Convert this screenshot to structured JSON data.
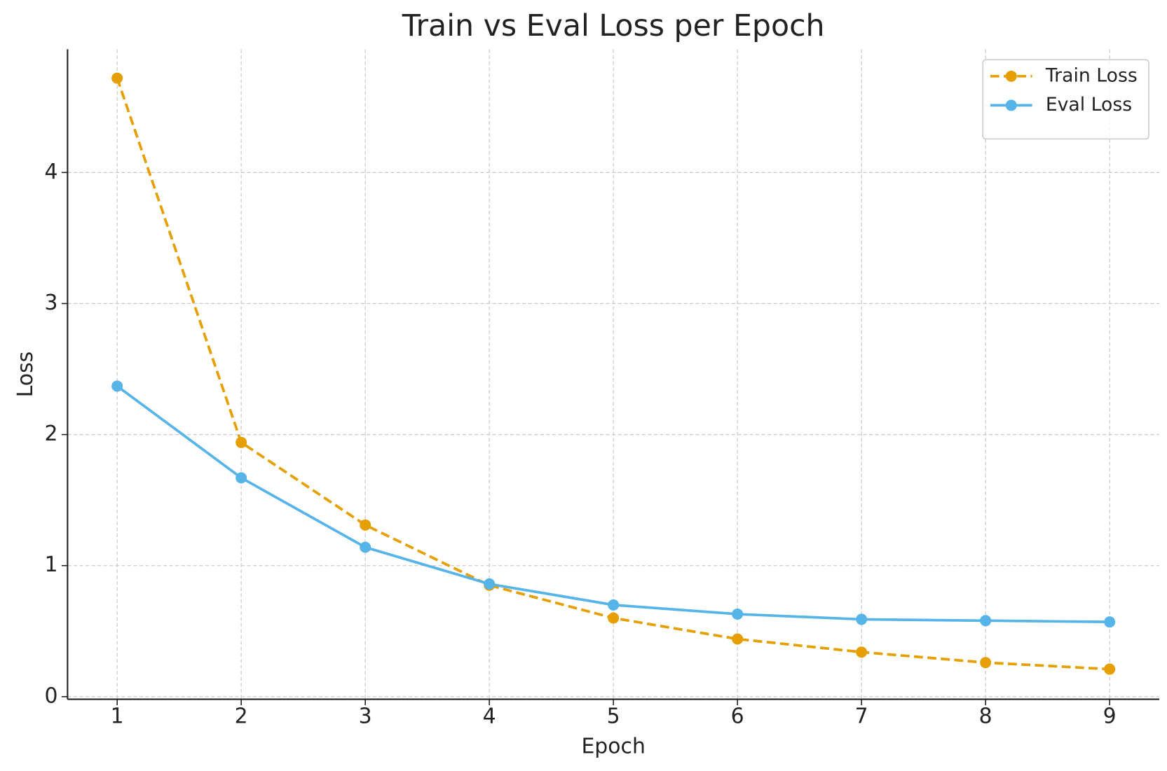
{
  "chart_data": {
    "type": "line",
    "title": "Train vs Eval Loss per Epoch",
    "x_label": "Epoch",
    "y_label": "Loss",
    "x": [
      1,
      2,
      3,
      4,
      5,
      6,
      7,
      8,
      9
    ],
    "series": [
      {
        "name": "Train Loss",
        "color": "#E69F00",
        "linestyle": "dashed",
        "values": [
          4.72,
          1.94,
          1.31,
          0.85,
          0.6,
          0.44,
          0.34,
          0.26,
          0.21
        ]
      },
      {
        "name": "Eval Loss",
        "color": "#56B4E9",
        "linestyle": "solid",
        "values": [
          2.37,
          1.67,
          1.14,
          0.86,
          0.7,
          0.63,
          0.59,
          0.58,
          0.57
        ]
      }
    ],
    "xlim": [
      0.6,
      9.4
    ],
    "xticks": [
      1,
      2,
      3,
      4,
      5,
      6,
      7,
      8,
      9
    ],
    "ylim": [
      -0.02,
      4.94
    ],
    "yticks": [
      0,
      1,
      2,
      3,
      4
    ],
    "grid": true,
    "legend": "upper right"
  }
}
